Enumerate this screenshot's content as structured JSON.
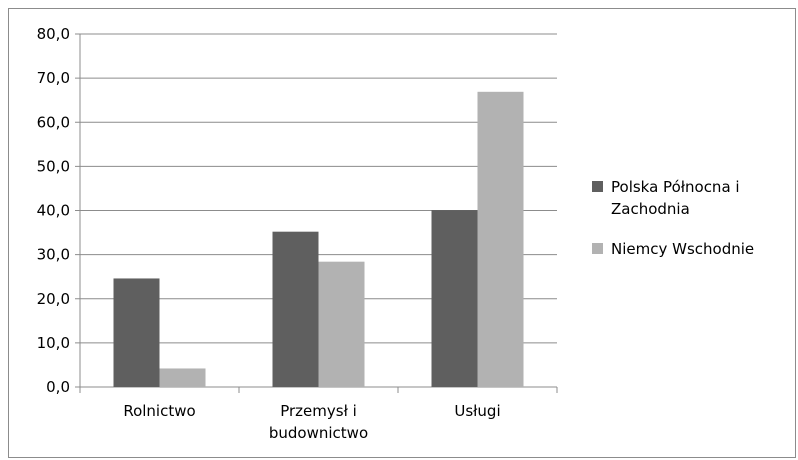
{
  "chart_data": {
    "type": "bar",
    "categories": [
      [
        "Rolnictwo"
      ],
      [
        "Przemysł i",
        "budownictwo"
      ],
      [
        "Usługi"
      ]
    ],
    "series": [
      {
        "name": [
          "Polska Północna i",
          "Zachodnia"
        ],
        "values": [
          24.6,
          35.2,
          40.1
        ],
        "color": "#5f5f5f"
      },
      {
        "name": [
          "Niemcy Wschodnie"
        ],
        "values": [
          4.2,
          28.4,
          66.9
        ],
        "color": "#b2b2b2"
      }
    ],
    "yticks": [
      "0,0",
      "10,0",
      "20,0",
      "30,0",
      "40,0",
      "50,0",
      "60,0",
      "70,0",
      "80,0"
    ],
    "ylim": [
      0,
      80
    ],
    "grid": true,
    "legend_position": "right"
  }
}
